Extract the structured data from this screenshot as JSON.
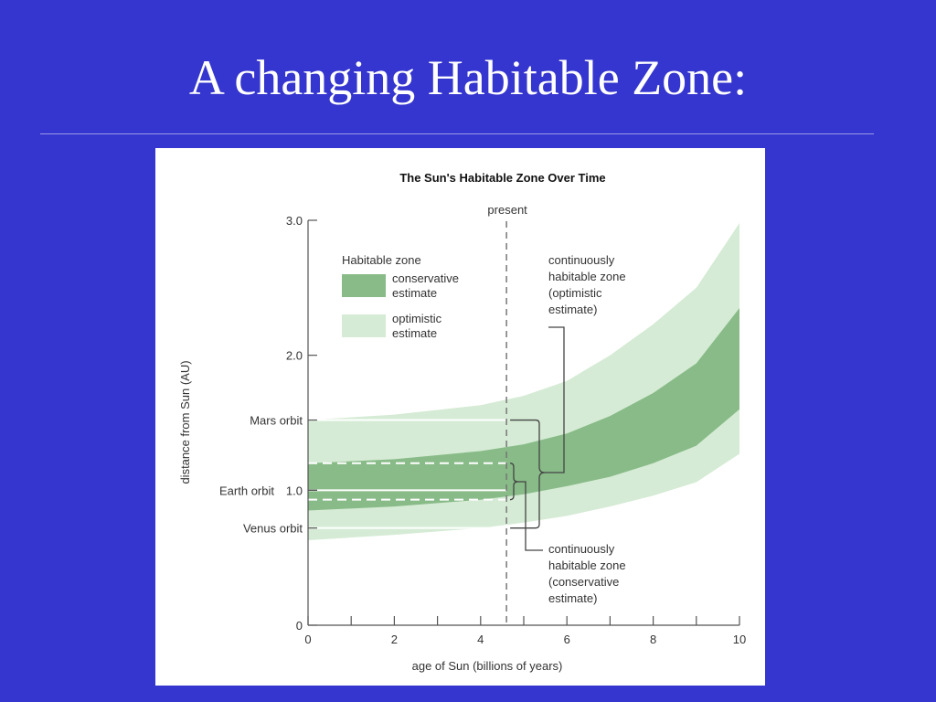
{
  "slide": {
    "title": "A changing Habitable Zone:"
  },
  "chart_data": {
    "type": "area",
    "title": "The Sun's Habitable Zone Over Time",
    "xlabel": "age of Sun (billions of years)",
    "ylabel": "distance from Sun (AU)",
    "xlim": [
      0,
      10
    ],
    "ylim": [
      0,
      3.0
    ],
    "x_ticks": [
      0,
      2,
      4,
      6,
      8,
      10
    ],
    "y_ticks": [
      {
        "value": 0,
        "label": "0"
      },
      {
        "value": 1.0,
        "label": "1.0"
      },
      {
        "value": 2.0,
        "label": "2.0"
      },
      {
        "value": 3.0,
        "label": "3.0"
      }
    ],
    "reference_lines": [
      {
        "name": "Mars orbit",
        "value": 1.52
      },
      {
        "name": "Earth orbit",
        "value": 1.0
      },
      {
        "name": "Venus orbit",
        "value": 0.72
      }
    ],
    "present": {
      "label": "present",
      "x": 4.6
    },
    "x": [
      0,
      2,
      4,
      5,
      6,
      7,
      8,
      9,
      10
    ],
    "series": [
      {
        "name": "optimistic estimate",
        "color": "#d5ebd5",
        "lower": [
          0.63,
          0.67,
          0.72,
          0.76,
          0.81,
          0.88,
          0.96,
          1.06,
          1.27
        ],
        "upper": [
          1.52,
          1.56,
          1.63,
          1.7,
          1.81,
          2.0,
          2.23,
          2.5,
          2.98
        ]
      },
      {
        "name": "conservative estimate",
        "color": "#88bb88",
        "lower": [
          0.85,
          0.88,
          0.93,
          0.97,
          1.03,
          1.1,
          1.2,
          1.33,
          1.6
        ],
        "upper": [
          1.2,
          1.23,
          1.29,
          1.34,
          1.42,
          1.55,
          1.72,
          1.94,
          2.35
        ]
      }
    ],
    "legend": {
      "title": "Habitable zone",
      "placement": "upper-left",
      "items": [
        {
          "line1": "conservative",
          "line2": "estimate",
          "color": "#88bb88"
        },
        {
          "line1": "optimistic",
          "line2": "estimate",
          "color": "#d5ebd5"
        }
      ]
    },
    "annotations": {
      "optimistic": [
        "continuously",
        "habitable zone",
        "(optimistic",
        "estimate)"
      ],
      "conservative": [
        "continuously",
        "habitable zone",
        "(conservative",
        "estimate)"
      ]
    }
  }
}
